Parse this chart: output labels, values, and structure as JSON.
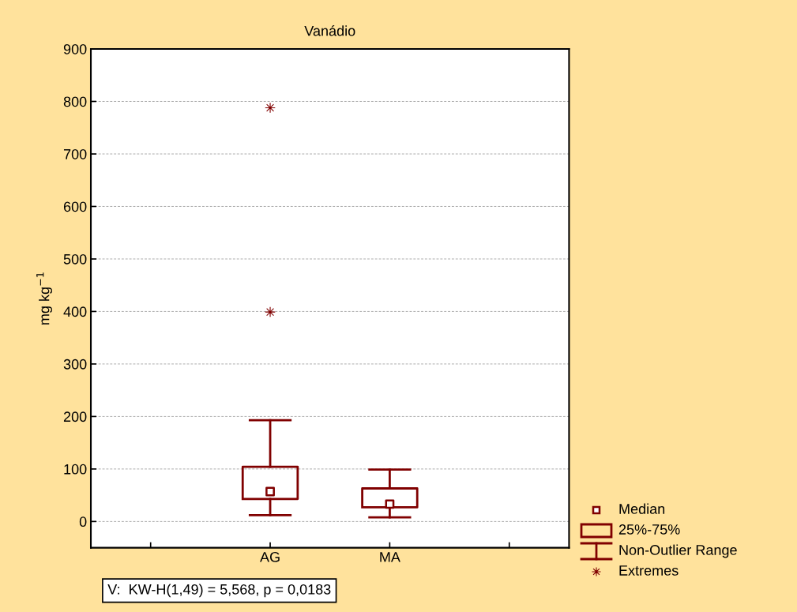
{
  "chart_data": {
    "type": "box",
    "title": "Vanádio",
    "ylabel": "mg kg$^{−1}$",
    "categories": [
      "AG",
      "MA"
    ],
    "boxes": [
      {
        "low": 12,
        "q1": 43,
        "median": 57,
        "q3": 104,
        "high": 193,
        "outliers": [
          399,
          788
        ]
      },
      {
        "low": 8,
        "q1": 27,
        "median": 33,
        "q3": 63,
        "high": 99
      }
    ],
    "color": "#800000",
    "ylim": [
      -50,
      900
    ],
    "yticks": [
      0,
      100,
      200,
      300,
      400,
      500,
      600,
      700,
      800,
      900
    ],
    "grid": "y",
    "annotations": [
      "V:  KW-H(1,49) = 5,568, p = 0,0183",
      "Median",
      "25%-75%",
      "Non-Outlier Range",
      "Extremes"
    ]
  }
}
